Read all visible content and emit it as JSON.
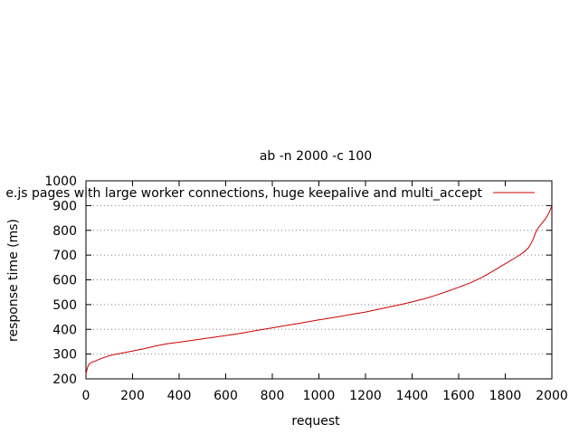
{
  "chart_data": {
    "type": "line",
    "title": "ab -n 2000 -c 100",
    "xlabel": "request",
    "ylabel": "response time (ms)",
    "xlim": [
      0,
      2000
    ],
    "ylim": [
      200,
      1000
    ],
    "xticks": [
      0,
      200,
      400,
      600,
      800,
      1000,
      1200,
      1400,
      1600,
      1800,
      2000
    ],
    "yticks": [
      200,
      300,
      400,
      500,
      600,
      700,
      800,
      900,
      1000
    ],
    "grid": "horizontal dotted",
    "legend_position": "top-right",
    "series": [
      {
        "name": "e.js pages with large worker connections, huge keepalive and multi_accept",
        "color": "#cc0000",
        "x": [
          0,
          5,
          10,
          20,
          40,
          60,
          80,
          100,
          120,
          150,
          200,
          250,
          300,
          350,
          400,
          450,
          500,
          550,
          600,
          650,
          700,
          750,
          800,
          850,
          900,
          950,
          1000,
          1050,
          1100,
          1150,
          1200,
          1250,
          1300,
          1350,
          1400,
          1450,
          1500,
          1550,
          1600,
          1650,
          1700,
          1750,
          1800,
          1850,
          1880,
          1900,
          1910,
          1920,
          1930,
          1940,
          1950,
          1960,
          1970,
          1980,
          1990,
          2000
        ],
        "y": [
          220,
          240,
          255,
          265,
          272,
          280,
          287,
          293,
          298,
          303,
          312,
          322,
          333,
          342,
          348,
          355,
          362,
          368,
          375,
          382,
          390,
          398,
          406,
          414,
          422,
          430,
          438,
          446,
          454,
          462,
          470,
          480,
          490,
          500,
          511,
          523,
          537,
          553,
          570,
          588,
          610,
          637,
          665,
          693,
          712,
          730,
          745,
          765,
          790,
          808,
          820,
          832,
          843,
          858,
          875,
          900
        ]
      }
    ]
  }
}
